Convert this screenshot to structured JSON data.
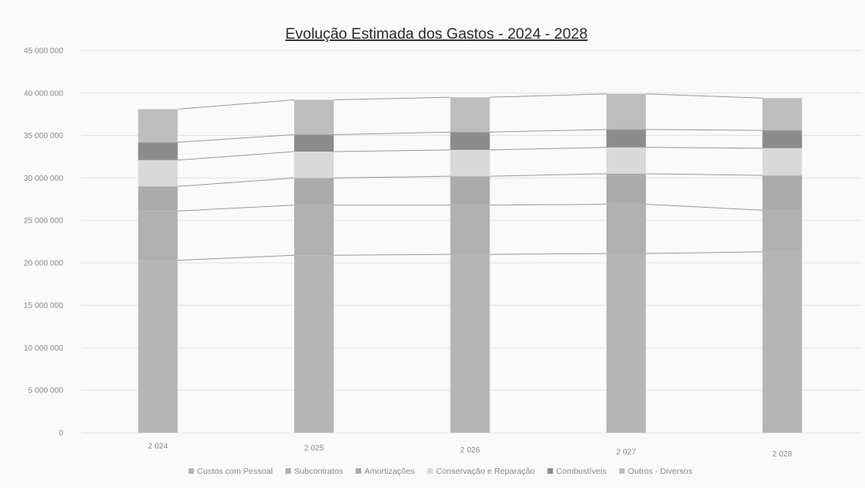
{
  "chart_data": {
    "type": "bar",
    "stacked": true,
    "title": "Evolução Estimada dos Gastos - 2024 - 2028",
    "xlabel": "",
    "ylabel": "",
    "categories": [
      "2 024",
      "2 025",
      "2 026",
      "2 027",
      "2 028"
    ],
    "y_ticks": [
      "0",
      "5 000 000",
      "10 000 000",
      "15 000 000",
      "20 000 000",
      "25 000 000",
      "30 000 000",
      "35 000 000",
      "40 000 000",
      "45 000 000"
    ],
    "ylim": [
      0,
      45000000
    ],
    "grid": true,
    "legend_position": "bottom",
    "series_lines": true,
    "series": [
      {
        "name": "Custos com Pessoal",
        "color": "#b5b5b5",
        "values": [
          20300000,
          20900000,
          21000000,
          21100000,
          21300000
        ]
      },
      {
        "name": "Subcontratos",
        "color": "#b0b0b0",
        "values": [
          5800000,
          5900000,
          5800000,
          5800000,
          4900000
        ]
      },
      {
        "name": "Amortizações",
        "color": "#ababab",
        "values": [
          2900000,
          3200000,
          3400000,
          3600000,
          4100000
        ]
      },
      {
        "name": "Conservação e Reparação",
        "color": "#d9d9d9",
        "values": [
          3100000,
          3100000,
          3100000,
          3100000,
          3200000
        ]
      },
      {
        "name": "Combustíveis",
        "color": "#8c8c8c",
        "values": [
          2100000,
          2000000,
          2100000,
          2100000,
          2100000
        ]
      },
      {
        "name": "Outros - Diversos",
        "color": "#bdbdbd",
        "values": [
          3900000,
          4100000,
          4100000,
          4200000,
          3800000
        ]
      }
    ]
  }
}
